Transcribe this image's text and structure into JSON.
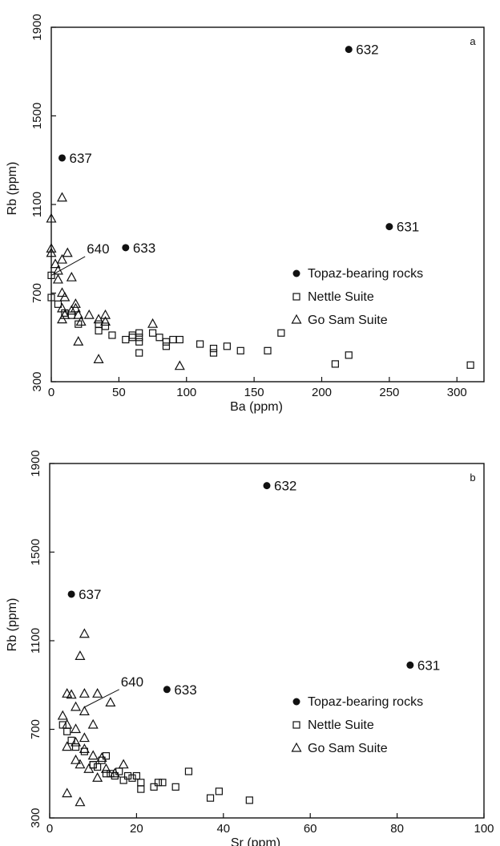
{
  "chart_data": [
    {
      "type": "scatter",
      "panel_letter": "a",
      "xlabel": "Ba  (ppm)",
      "ylabel": "Rb  (ppm)",
      "xlim": [
        0,
        320
      ],
      "ylim": [
        300,
        1900
      ],
      "xticks": [
        0,
        50,
        100,
        150,
        200,
        250,
        300
      ],
      "yticks": [
        300,
        700,
        1100,
        1500,
        1900
      ],
      "legend_position": "lower-right",
      "series": [
        {
          "name": "Topaz-bearing rocks",
          "marker": "filled-circle",
          "points": [
            {
              "x": 220,
              "y": 1800,
              "label": "632"
            },
            {
              "x": 8,
              "y": 1310,
              "label": "637"
            },
            {
              "x": 250,
              "y": 1000,
              "label": "631"
            },
            {
              "x": 55,
              "y": 905,
              "label": "633"
            }
          ]
        },
        {
          "name": "Nettle Suite",
          "marker": "open-square",
          "points": [
            {
              "x": 0,
              "y": 780
            },
            {
              "x": 0,
              "y": 680
            },
            {
              "x": 5,
              "y": 650
            },
            {
              "x": 10,
              "y": 610
            },
            {
              "x": 15,
              "y": 600
            },
            {
              "x": 20,
              "y": 560
            },
            {
              "x": 35,
              "y": 560
            },
            {
              "x": 35,
              "y": 530
            },
            {
              "x": 40,
              "y": 550
            },
            {
              "x": 45,
              "y": 510
            },
            {
              "x": 55,
              "y": 490
            },
            {
              "x": 60,
              "y": 500
            },
            {
              "x": 60,
              "y": 510
            },
            {
              "x": 65,
              "y": 480
            },
            {
              "x": 65,
              "y": 500
            },
            {
              "x": 65,
              "y": 520
            },
            {
              "x": 65,
              "y": 430
            },
            {
              "x": 75,
              "y": 520
            },
            {
              "x": 80,
              "y": 500
            },
            {
              "x": 85,
              "y": 460
            },
            {
              "x": 85,
              "y": 480
            },
            {
              "x": 90,
              "y": 490
            },
            {
              "x": 95,
              "y": 490
            },
            {
              "x": 110,
              "y": 470
            },
            {
              "x": 120,
              "y": 450
            },
            {
              "x": 120,
              "y": 430
            },
            {
              "x": 130,
              "y": 460
            },
            {
              "x": 140,
              "y": 440
            },
            {
              "x": 160,
              "y": 440
            },
            {
              "x": 170,
              "y": 520
            },
            {
              "x": 210,
              "y": 380
            },
            {
              "x": 220,
              "y": 420
            },
            {
              "x": 310,
              "y": 375
            }
          ]
        },
        {
          "name": "Go Sam Suite",
          "marker": "open-triangle",
          "points": [
            {
              "x": 8,
              "y": 1130
            },
            {
              "x": 0,
              "y": 1035
            },
            {
              "x": 0,
              "y": 900
            },
            {
              "x": 0,
              "y": 880
            },
            {
              "x": 3,
              "y": 830
            },
            {
              "x": 5,
              "y": 800
            },
            {
              "x": 8,
              "y": 850
            },
            {
              "x": 12,
              "y": 880
            },
            {
              "x": 15,
              "y": 770
            },
            {
              "x": 8,
              "y": 700
            },
            {
              "x": 10,
              "y": 680
            },
            {
              "x": 8,
              "y": 630
            },
            {
              "x": 10,
              "y": 600
            },
            {
              "x": 15,
              "y": 620
            },
            {
              "x": 18,
              "y": 650
            },
            {
              "x": 18,
              "y": 630
            },
            {
              "x": 20,
              "y": 600
            },
            {
              "x": 22,
              "y": 570
            },
            {
              "x": 28,
              "y": 600
            },
            {
              "x": 35,
              "y": 580
            },
            {
              "x": 40,
              "y": 600
            },
            {
              "x": 40,
              "y": 570
            },
            {
              "x": 8,
              "y": 580
            },
            {
              "x": 20,
              "y": 480
            },
            {
              "x": 35,
              "y": 400
            },
            {
              "x": 75,
              "y": 560
            },
            {
              "x": 95,
              "y": 370
            },
            {
              "x": 5,
              "y": 760
            }
          ]
        }
      ],
      "annotations": [
        {
          "text": "640",
          "line_from": [
            0,
            780
          ],
          "line_to": [
            25,
            865
          ]
        }
      ]
    },
    {
      "type": "scatter",
      "panel_letter": "b",
      "xlabel": "Sr  (ppm)",
      "ylabel": "Rb  (ppm)",
      "xlim": [
        0,
        100
      ],
      "ylim": [
        300,
        1900
      ],
      "xticks": [
        0,
        20,
        40,
        60,
        80,
        100
      ],
      "yticks": [
        300,
        700,
        1100,
        1500,
        1900
      ],
      "legend_position": "lower-right",
      "series": [
        {
          "name": "Topaz-bearing rocks",
          "marker": "filled-circle",
          "points": [
            {
              "x": 50,
              "y": 1800,
              "label": "632"
            },
            {
              "x": 5,
              "y": 1310,
              "label": "637"
            },
            {
              "x": 83,
              "y": 990,
              "label": "631"
            },
            {
              "x": 27,
              "y": 880,
              "label": "633"
            }
          ]
        },
        {
          "name": "Nettle Suite",
          "marker": "open-square",
          "points": [
            {
              "x": 3,
              "y": 720
            },
            {
              "x": 4,
              "y": 690
            },
            {
              "x": 5,
              "y": 650
            },
            {
              "x": 6,
              "y": 620
            },
            {
              "x": 8,
              "y": 600
            },
            {
              "x": 10,
              "y": 540
            },
            {
              "x": 11,
              "y": 530
            },
            {
              "x": 12,
              "y": 560
            },
            {
              "x": 13,
              "y": 580
            },
            {
              "x": 14,
              "y": 500
            },
            {
              "x": 15,
              "y": 490
            },
            {
              "x": 16,
              "y": 510
            },
            {
              "x": 17,
              "y": 470
            },
            {
              "x": 18,
              "y": 490
            },
            {
              "x": 19,
              "y": 480
            },
            {
              "x": 20,
              "y": 490
            },
            {
              "x": 21,
              "y": 460
            },
            {
              "x": 21,
              "y": 430
            },
            {
              "x": 24,
              "y": 440
            },
            {
              "x": 25,
              "y": 460
            },
            {
              "x": 26,
              "y": 460
            },
            {
              "x": 29,
              "y": 440
            },
            {
              "x": 32,
              "y": 510
            },
            {
              "x": 37,
              "y": 390
            },
            {
              "x": 39,
              "y": 420
            },
            {
              "x": 46,
              "y": 380
            },
            {
              "x": 10,
              "y": 540
            },
            {
              "x": 13,
              "y": 500
            }
          ]
        },
        {
          "name": "Go Sam Suite",
          "marker": "open-triangle",
          "points": [
            {
              "x": 8,
              "y": 1130
            },
            {
              "x": 7,
              "y": 1030
            },
            {
              "x": 4,
              "y": 860
            },
            {
              "x": 5,
              "y": 855
            },
            {
              "x": 8,
              "y": 860
            },
            {
              "x": 11,
              "y": 860
            },
            {
              "x": 14,
              "y": 820
            },
            {
              "x": 6,
              "y": 800
            },
            {
              "x": 8,
              "y": 780
            },
            {
              "x": 10,
              "y": 720
            },
            {
              "x": 3,
              "y": 760
            },
            {
              "x": 4,
              "y": 720
            },
            {
              "x": 6,
              "y": 700
            },
            {
              "x": 8,
              "y": 660
            },
            {
              "x": 6,
              "y": 640
            },
            {
              "x": 4,
              "y": 620
            },
            {
              "x": 8,
              "y": 610
            },
            {
              "x": 10,
              "y": 580
            },
            {
              "x": 12,
              "y": 570
            },
            {
              "x": 6,
              "y": 560
            },
            {
              "x": 7,
              "y": 540
            },
            {
              "x": 9,
              "y": 520
            },
            {
              "x": 13,
              "y": 520
            },
            {
              "x": 15,
              "y": 500
            },
            {
              "x": 17,
              "y": 540
            },
            {
              "x": 11,
              "y": 480
            },
            {
              "x": 4,
              "y": 410
            },
            {
              "x": 7,
              "y": 370
            }
          ]
        }
      ],
      "annotations": [
        {
          "text": "640",
          "line_from": [
            8,
            800
          ],
          "line_to": [
            16,
            880
          ]
        }
      ]
    }
  ],
  "colors": {
    "ink": "#111111",
    "background": "#ffffff"
  }
}
